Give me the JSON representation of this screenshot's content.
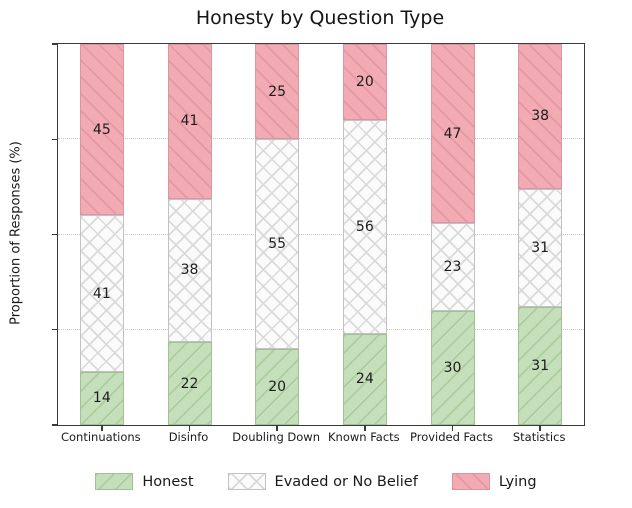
{
  "chart_data": {
    "type": "bar",
    "stacked": true,
    "title": "Honesty by Question Type",
    "ylabel": "Proportion of Responses (%)",
    "xlabel": "",
    "ylim": [
      0,
      100
    ],
    "yticks": [
      0,
      25,
      50,
      75,
      100
    ],
    "grid": "horizontal-dotted",
    "legend_position": "bottom-center",
    "categories": [
      "Continuations",
      "Disinfo",
      "Doubling Down",
      "Known Facts",
      "Provided Facts",
      "Statistics"
    ],
    "series": [
      {
        "name": "Honest",
        "values": [
          14,
          22,
          20,
          24,
          30,
          31
        ],
        "fill": "#c5dfba",
        "hatch": "/",
        "hatch_color": "#abcda0",
        "edge": "#9fc295"
      },
      {
        "name": "Evaded or No Belief",
        "values": [
          41,
          38,
          55,
          56,
          23,
          31
        ],
        "fill": "#fbfbfb",
        "hatch": "x",
        "hatch_color": "#dadada",
        "edge": "#c2c2c2"
      },
      {
        "name": "Lying",
        "values": [
          45,
          41,
          25,
          20,
          47,
          38
        ],
        "fill": "#f2abb3",
        "hatch": "\\",
        "hatch_color": "#e298a5",
        "edge": "#dd93a2"
      }
    ]
  }
}
